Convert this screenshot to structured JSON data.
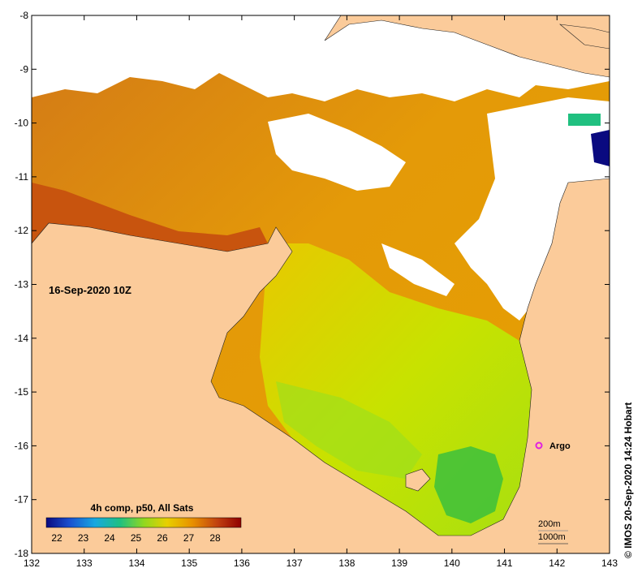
{
  "map": {
    "timestamp": "16-Sep-2020 10Z",
    "x_ticks": [
      "132",
      "133",
      "134",
      "135",
      "136",
      "137",
      "138",
      "139",
      "140",
      "141",
      "142",
      "143"
    ],
    "y_ticks": [
      "-8",
      "-9",
      "-10",
      "-11",
      "-12",
      "-13",
      "-14",
      "-15",
      "-16",
      "-17",
      "-18"
    ],
    "argo_label": "Argo",
    "depth_contours": [
      "200m",
      "1000m"
    ],
    "credit": "© IMOS 20-Sep-2020 14:24 Hobart",
    "colorbar": {
      "title": "4h comp, p50, All Sats",
      "ticks": [
        "22",
        "23",
        "24",
        "25",
        "26",
        "27",
        "28"
      ],
      "colors": [
        "#0a0a80",
        "#1a50d0",
        "#18a8e0",
        "#20c080",
        "#90d820",
        "#e8d000",
        "#e89000",
        "#c04010",
        "#900000"
      ]
    },
    "colors": {
      "land": "#fbcb9a",
      "cloud": "#ffffff",
      "sst_warm": "#d87a10",
      "sst_mid": "#e6a000",
      "sst_cool": "#b8e000",
      "sst_green": "#3cc03c",
      "argo": "#e020e0"
    }
  }
}
